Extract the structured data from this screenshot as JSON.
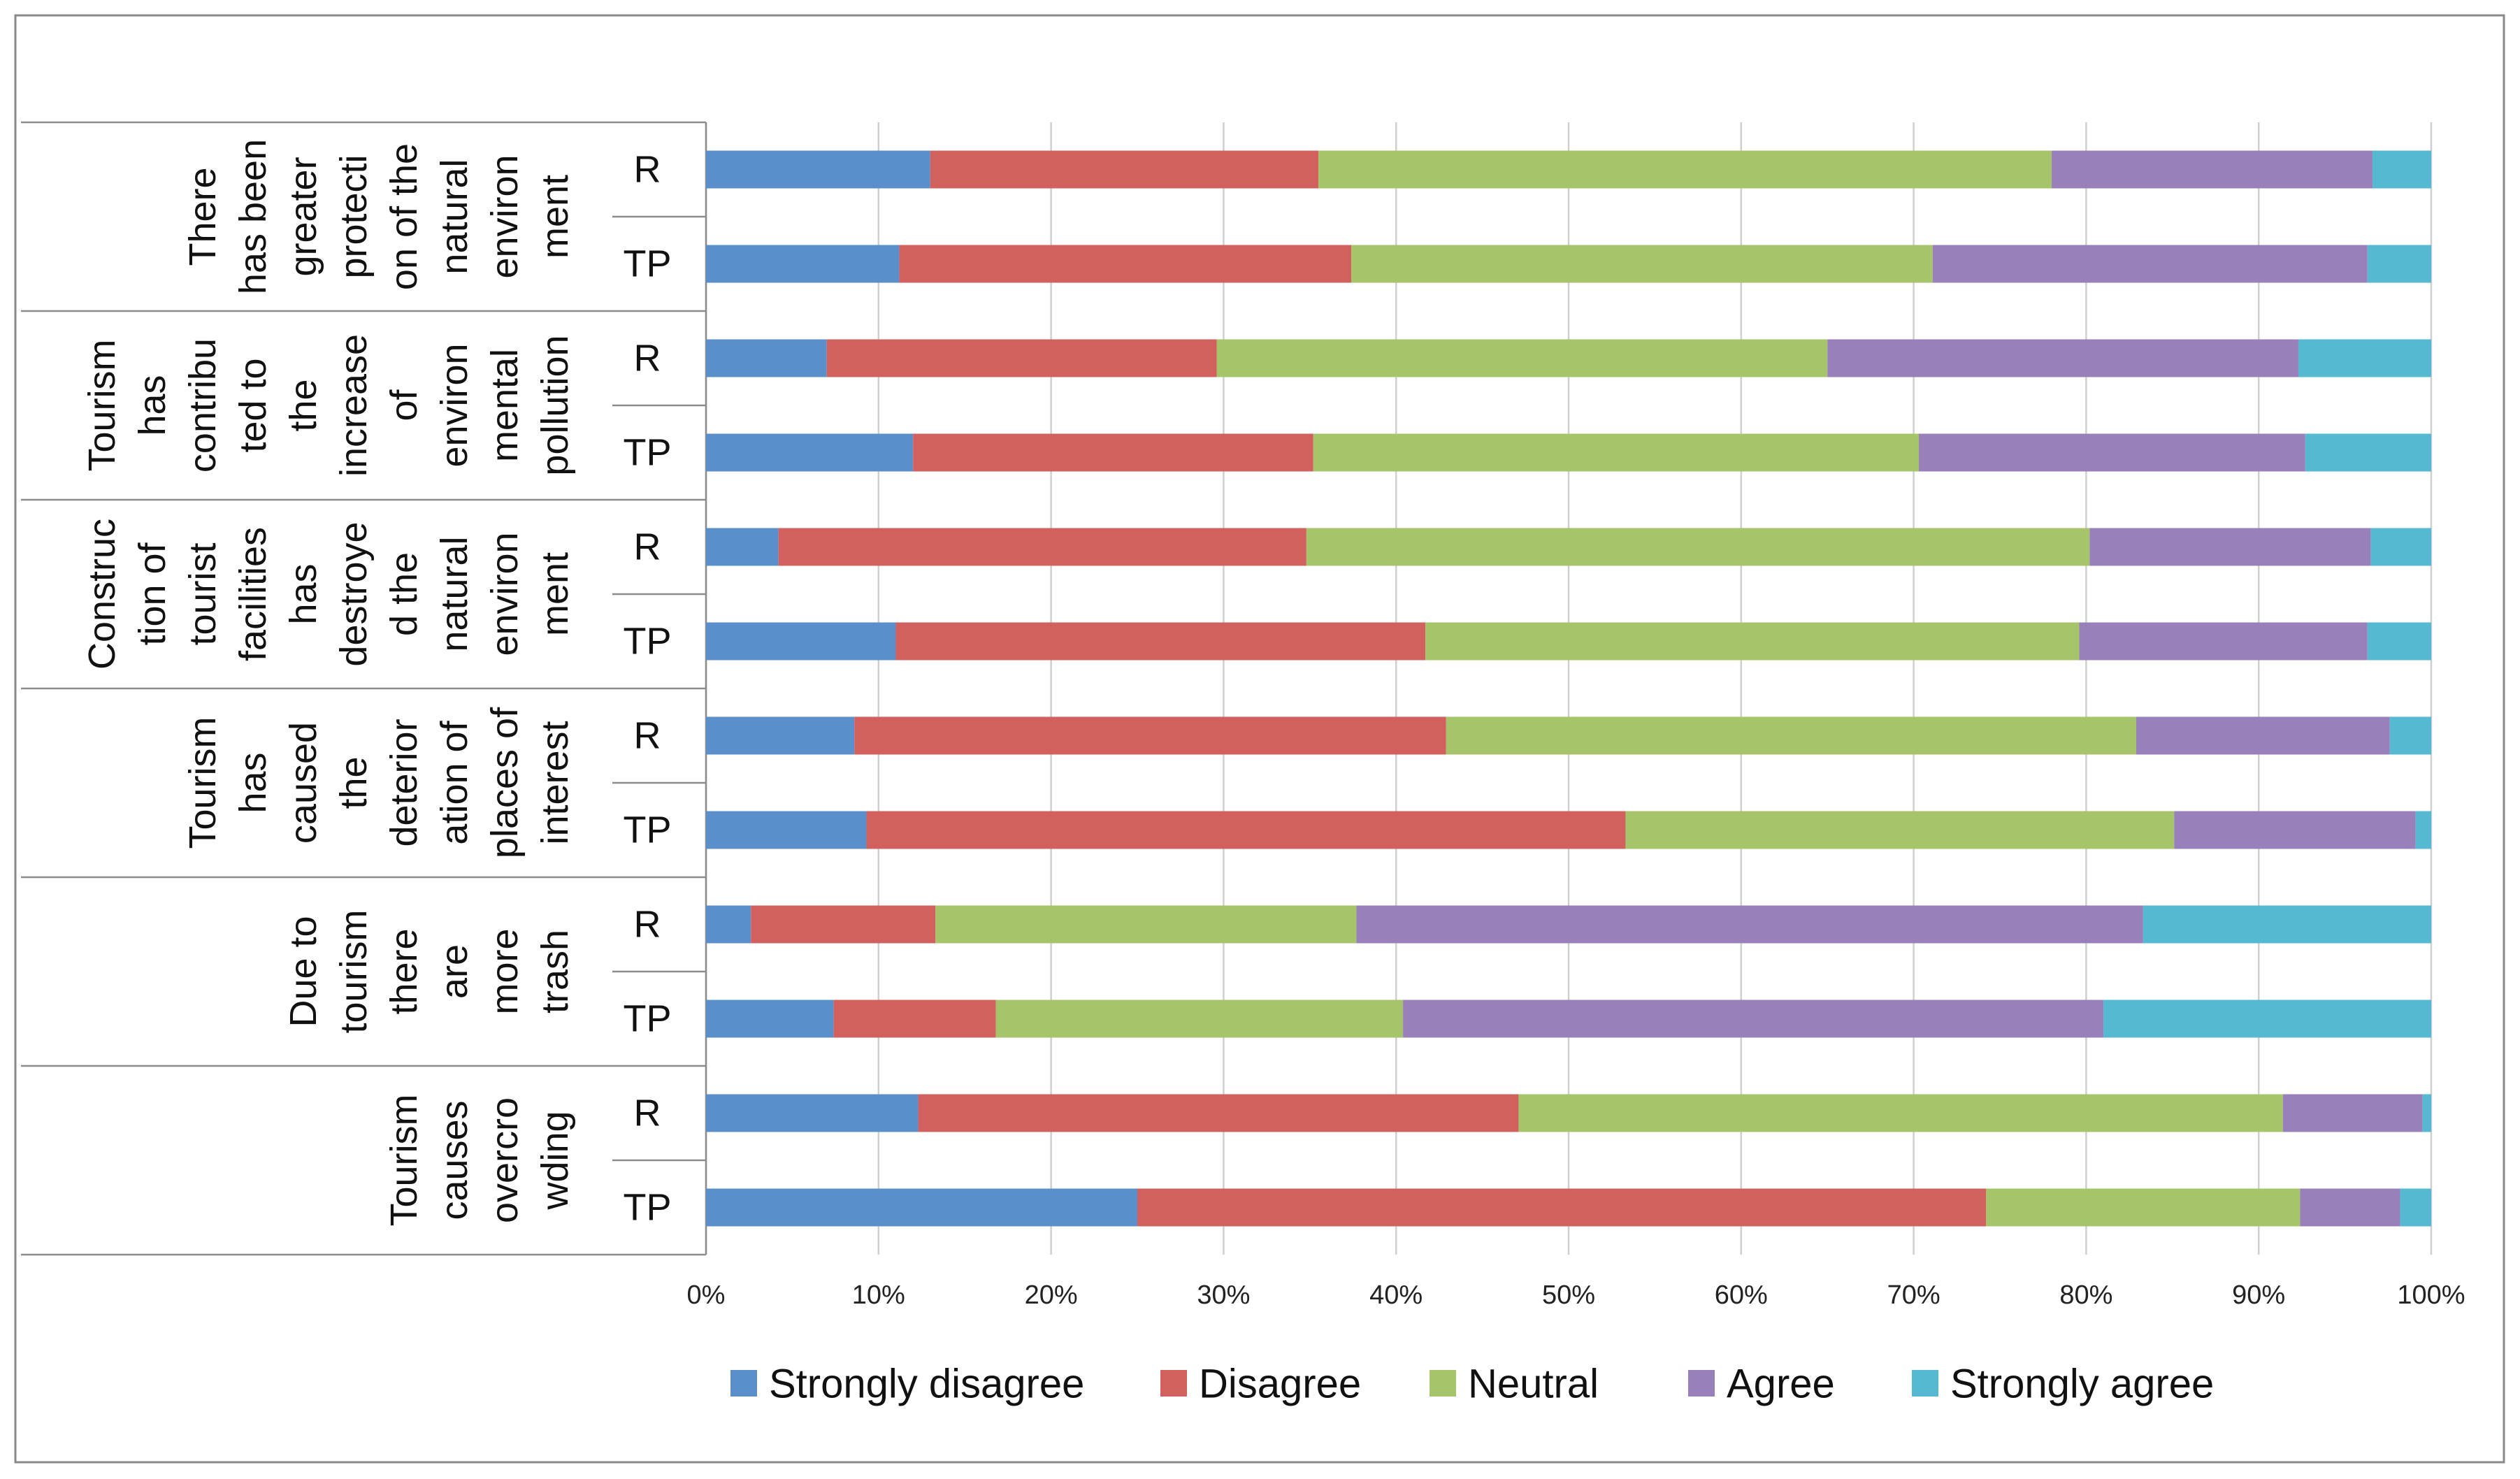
{
  "chart_data": {
    "type": "bar",
    "orientation": "horizontal",
    "stacked": "percent",
    "title": "",
    "xlabel": "",
    "ylabel": "",
    "xlim": [
      0,
      100
    ],
    "x_ticks": [
      "0%",
      "10%",
      "20%",
      "30%",
      "40%",
      "50%",
      "60%",
      "70%",
      "80%",
      "90%",
      "100%"
    ],
    "legend_position": "bottom",
    "legend": [
      {
        "name": "Strongly disagree",
        "color": "#5b8fcc"
      },
      {
        "name": "Disagree",
        "color": "#d2605e"
      },
      {
        "name": "Neutral",
        "color": "#a6c46a"
      },
      {
        "name": "Agree",
        "color": "#9880bb"
      },
      {
        "name": "Strongly agree",
        "color": "#55b9d1"
      }
    ],
    "groups": [
      {
        "question": [
          "There",
          "has been",
          "greater",
          "protecti",
          "on of the",
          "natural",
          "environ",
          "ment"
        ],
        "rows": [
          {
            "label": "R",
            "values": [
              13,
              22.5,
              42.5,
              18.6,
              3.4
            ]
          },
          {
            "label": "TP",
            "values": [
              11.2,
              26.2,
              33.7,
              25.2,
              3.7
            ]
          }
        ]
      },
      {
        "question": [
          "Tourism",
          "has",
          "contribu",
          "ted to",
          "the",
          "increase",
          "of",
          "environ",
          "mental",
          "pollution"
        ],
        "rows": [
          {
            "label": "R",
            "values": [
              7,
              22.6,
              35.4,
              27.3,
              7.7
            ]
          },
          {
            "label": "TP",
            "values": [
              12,
              23.2,
              35.1,
              22.4,
              7.3
            ]
          }
        ]
      },
      {
        "question": [
          "Construc",
          "tion of",
          "tourist",
          "facilities",
          "has",
          "destroye",
          "d the",
          "natural",
          "environ",
          "ment"
        ],
        "rows": [
          {
            "label": "R",
            "values": [
              4.2,
              30.6,
              45.4,
              16.3,
              3.5
            ]
          },
          {
            "label": "TP",
            "values": [
              11,
              30.7,
              37.9,
              16.7,
              3.7
            ]
          }
        ]
      },
      {
        "question": [
          "Tourism",
          "has",
          "caused",
          "the",
          "deterior",
          "ation of",
          "places of",
          "interest"
        ],
        "rows": [
          {
            "label": "R",
            "values": [
              8.6,
              34.3,
              40,
              14.7,
              2.4
            ]
          },
          {
            "label": "TP",
            "values": [
              9.3,
              44,
              31.8,
              14,
              0.9
            ]
          }
        ]
      },
      {
        "question": [
          "Due to",
          "tourism",
          "there",
          "are",
          "more",
          "trash"
        ],
        "rows": [
          {
            "label": "R",
            "values": [
              2.6,
              10.7,
              24.4,
              45.6,
              16.7
            ]
          },
          {
            "label": "TP",
            "values": [
              7.4,
              9.4,
              23.6,
              40.6,
              19
            ]
          }
        ]
      },
      {
        "question": [
          "Tourism",
          "causes",
          "overcro",
          "wding"
        ],
        "rows": [
          {
            "label": "R",
            "values": [
              12.3,
              34.8,
              44.3,
              8.1,
              0.5
            ]
          },
          {
            "label": "TP",
            "values": [
              25,
              49.2,
              18.2,
              5.8,
              1.8
            ]
          }
        ]
      }
    ]
  }
}
